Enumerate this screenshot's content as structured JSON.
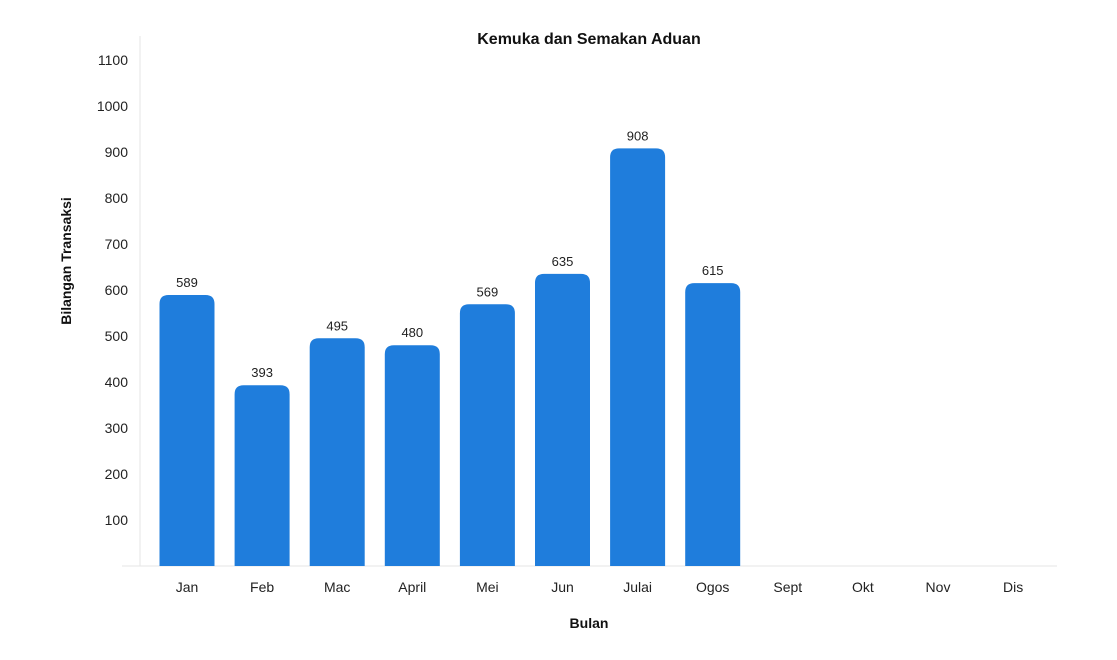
{
  "chart_data": {
    "type": "bar",
    "title": "Kemuka dan Semakan Aduan",
    "xlabel": "Bulan",
    "ylabel": "Bilangan Transaksi",
    "categories": [
      "Jan",
      "Feb",
      "Mac",
      "April",
      "Mei",
      "Jun",
      "Julai",
      "Ogos",
      "Sept",
      "Okt",
      "Nov",
      "Dis"
    ],
    "values": [
      589,
      393,
      495,
      480,
      569,
      635,
      908,
      615,
      null,
      null,
      null,
      null
    ],
    "data_labels": [
      "589",
      "393",
      "495",
      "480",
      "569",
      "635",
      "908",
      "615",
      "",
      "",
      "",
      ""
    ],
    "yticks": [
      100,
      200,
      300,
      400,
      500,
      600,
      700,
      800,
      900,
      1000,
      1100
    ],
    "ylim": [
      0,
      1150
    ],
    "grid": false,
    "legend": "none",
    "colors": {
      "bar": "#1f7ddc",
      "axis": "#e6e6e6"
    }
  }
}
